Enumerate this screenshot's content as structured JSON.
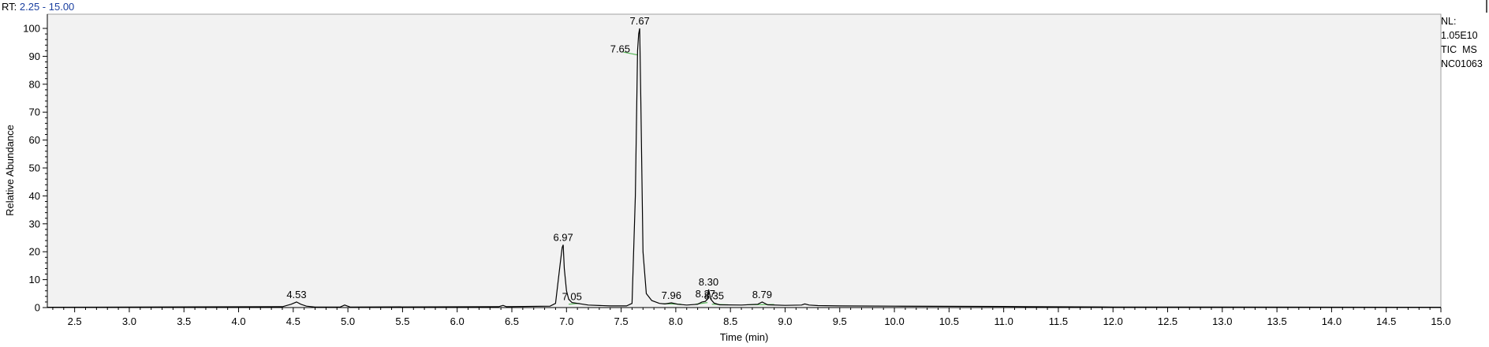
{
  "header": {
    "rt_prefix": "RT:",
    "rt_range": "2.25 - 15.00"
  },
  "info": {
    "nl_label": "NL:",
    "nl_value": "1.05E10",
    "scan_type": "TIC  MS",
    "sample_id": "NC01063"
  },
  "colors": {
    "plot_background": "#f2f2f2",
    "trace": "#000000",
    "integration_baseline": "#5cb85c",
    "rt_value": "#1a3fa0"
  },
  "chart_data": {
    "type": "line",
    "title": "",
    "xlabel": "Time (min)",
    "ylabel": "Relative Abundance",
    "xlim": [
      2.25,
      15.0
    ],
    "ylim": [
      0,
      100
    ],
    "x_ticks": [
      "2.5",
      "3.0",
      "3.5",
      "4.0",
      "4.5",
      "5.0",
      "5.5",
      "6.0",
      "6.5",
      "7.0",
      "7.5",
      "8.0",
      "8.5",
      "9.0",
      "9.5",
      "10.0",
      "10.5",
      "11.0",
      "11.5",
      "12.0",
      "12.5",
      "13.0",
      "13.5",
      "14.0",
      "14.5",
      "15.0"
    ],
    "y_ticks": [
      "0",
      "10",
      "20",
      "30",
      "40",
      "50",
      "60",
      "70",
      "80",
      "90",
      "100"
    ],
    "grid": false,
    "series": [
      {
        "x": [
          2.25,
          4.4,
          4.48,
          4.53,
          4.57,
          4.62,
          4.7,
          4.93,
          4.97,
          5.02,
          6.38,
          6.42,
          6.45,
          6.85,
          6.9,
          6.94,
          6.96,
          6.97,
          6.98,
          7.0,
          7.02,
          7.05,
          7.1,
          7.2,
          7.4,
          7.55,
          7.6,
          7.63,
          7.65,
          7.66,
          7.67,
          7.68,
          7.7,
          7.73,
          7.78,
          7.85,
          7.9,
          7.96,
          8.02,
          8.1,
          8.2,
          8.24,
          8.27,
          8.29,
          8.3,
          8.32,
          8.35,
          8.4,
          8.6,
          8.75,
          8.79,
          8.84,
          9.0,
          9.15,
          9.18,
          9.22,
          9.3,
          9.5,
          10.0,
          11.0,
          11.2,
          12.0,
          15.0
        ],
        "y": [
          0.1,
          0.3,
          1.2,
          2.0,
          1.2,
          0.5,
          0.2,
          0.2,
          0.9,
          0.2,
          0.3,
          0.8,
          0.3,
          0.5,
          1.5,
          15.0,
          21.5,
          22.5,
          14.0,
          6.0,
          3.0,
          1.8,
          1.5,
          0.9,
          0.6,
          0.6,
          1.5,
          40.0,
          92.0,
          98.0,
          100.0,
          75.0,
          20.0,
          5.0,
          2.5,
          1.5,
          1.3,
          1.7,
          1.2,
          0.9,
          1.2,
          2.0,
          2.2,
          3.0,
          6.5,
          3.0,
          1.6,
          1.0,
          0.9,
          1.2,
          2.0,
          1.0,
          0.8,
          0.9,
          1.3,
          0.9,
          0.7,
          0.6,
          0.5,
          0.4,
          0.3,
          0.2,
          0.1
        ]
      }
    ],
    "annotations": [
      {
        "label": "4.53",
        "x": 4.53,
        "y": 2.0
      },
      {
        "label": "6.97",
        "x": 6.97,
        "y": 22.5
      },
      {
        "label": "7.05",
        "x": 7.05,
        "y": 1.8
      },
      {
        "label": "7.65",
        "x": 7.65,
        "y": 92.0
      },
      {
        "label": "7.67",
        "x": 7.67,
        "y": 100.0
      },
      {
        "label": "7.96",
        "x": 7.96,
        "y": 1.7
      },
      {
        "label": "8.27",
        "x": 8.27,
        "y": 2.2
      },
      {
        "label": "8.30",
        "x": 8.3,
        "y": 6.5
      },
      {
        "label": "8.35",
        "x": 8.35,
        "y": 1.6
      },
      {
        "label": "8.79",
        "x": 8.79,
        "y": 2.0
      }
    ],
    "baselines": [
      {
        "x1": 7.02,
        "x2": 7.12,
        "y1": 1.2,
        "y2": 1.5
      },
      {
        "x1": 7.52,
        "x2": 7.65,
        "y1": 91.5,
        "y2": 90.5
      },
      {
        "x1": 7.88,
        "x2": 8.05,
        "y1": 1.4,
        "y2": 1.2
      },
      {
        "x1": 8.18,
        "x2": 8.29,
        "y1": 1.2,
        "y2": 1.8
      },
      {
        "x1": 8.33,
        "x2": 8.48,
        "y1": 1.2,
        "y2": 1.0
      },
      {
        "x1": 8.65,
        "x2": 8.9,
        "y1": 1.0,
        "y2": 1.1
      }
    ]
  }
}
